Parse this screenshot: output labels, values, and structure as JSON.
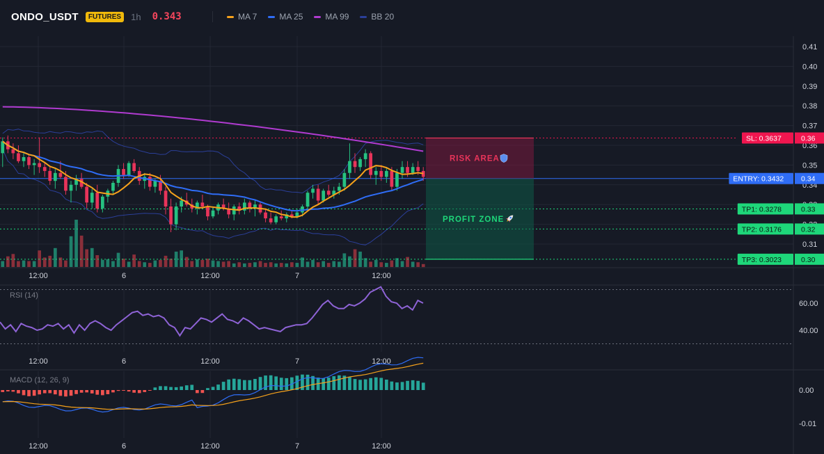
{
  "header": {
    "symbol": "ONDO_USDT",
    "badge": "FUTURES",
    "timeframe": "1h",
    "price": "0.343"
  },
  "legend": [
    {
      "label": "MA 7",
      "color": "#f7a21b"
    },
    {
      "label": "MA 25",
      "color": "#2f6df6"
    },
    {
      "label": "MA 99",
      "color": "#b03bd0"
    },
    {
      "label": "BB 20",
      "color": "#2b3f99"
    }
  ],
  "colors": {
    "up": "#26c281",
    "down": "#e8345a",
    "vol_up": "#1f7f6a",
    "vol_down": "#8a2f3a",
    "grid": "#232734",
    "axis_text": "#d1d4dc"
  },
  "price_axis": {
    "ticks": [
      "0.41",
      "0.40",
      "0.39",
      "0.38",
      "0.37",
      "0.36",
      "0.35",
      "0.34",
      "0.33",
      "0.32",
      "0.31"
    ],
    "min": 0.3,
    "max": 0.415
  },
  "time_axis": {
    "labels": [
      "12:00",
      "6",
      "12:00",
      "7",
      "12:00"
    ]
  },
  "levels": [
    {
      "label": "SL: 0.3637",
      "axis": "0.36",
      "value": 0.3637,
      "color": "#f0164f",
      "style": "dotted"
    },
    {
      "label": "ENTRY: 0.3432",
      "axis": "0.34",
      "value": 0.3432,
      "color": "#2f6df6",
      "style": "solid"
    },
    {
      "label": "TP1: 0.3278",
      "axis": "0.33",
      "value": 0.3278,
      "color": "#1ed77a",
      "style": "dotted"
    },
    {
      "label": "TP2: 0.3176",
      "axis": "0.32",
      "value": 0.3176,
      "color": "#1ed77a",
      "style": "dotted"
    },
    {
      "label": "TP3: 0.3023",
      "axis": "0.30",
      "value": 0.3023,
      "color": "#1ed77a",
      "style": "dotted"
    }
  ],
  "zones": {
    "risk": {
      "label": "RISK AREA",
      "icon": "shield-icon"
    },
    "profit": {
      "label": "PROFIT ZONE",
      "icon": "rocket-icon"
    }
  },
  "rsi": {
    "title": "RSI (14)",
    "ticks": [
      "60.00",
      "40.00"
    ],
    "color": "#8e63d6"
  },
  "macd": {
    "title": "MACD (12, 26, 9)",
    "ticks": [
      "0.00",
      "-0.01"
    ],
    "macd_color": "#2f6df6",
    "signal_color": "#f7a21b"
  },
  "chart_data": {
    "type": "candlestick",
    "candles": [
      [
        0.356,
        0.364,
        0.349,
        0.362
      ],
      [
        0.362,
        0.365,
        0.356,
        0.358
      ],
      [
        0.358,
        0.361,
        0.353,
        0.356
      ],
      [
        0.356,
        0.36,
        0.351,
        0.352
      ],
      [
        0.352,
        0.356,
        0.349,
        0.354
      ],
      [
        0.354,
        0.355,
        0.348,
        0.35
      ],
      [
        0.35,
        0.353,
        0.345,
        0.351
      ],
      [
        0.351,
        0.364,
        0.346,
        0.349
      ],
      [
        0.349,
        0.351,
        0.344,
        0.347
      ],
      [
        0.347,
        0.349,
        0.34,
        0.342
      ],
      [
        0.342,
        0.348,
        0.338,
        0.346
      ],
      [
        0.346,
        0.352,
        0.343,
        0.344
      ],
      [
        0.344,
        0.347,
        0.335,
        0.337
      ],
      [
        0.337,
        0.342,
        0.331,
        0.34
      ],
      [
        0.34,
        0.345,
        0.337,
        0.343
      ],
      [
        0.343,
        0.346,
        0.338,
        0.339
      ],
      [
        0.339,
        0.341,
        0.328,
        0.331
      ],
      [
        0.331,
        0.338,
        0.328,
        0.336
      ],
      [
        0.336,
        0.34,
        0.326,
        0.328
      ],
      [
        0.328,
        0.335,
        0.326,
        0.334
      ],
      [
        0.334,
        0.338,
        0.331,
        0.337
      ],
      [
        0.337,
        0.342,
        0.335,
        0.341
      ],
      [
        0.341,
        0.35,
        0.339,
        0.348
      ],
      [
        0.348,
        0.351,
        0.343,
        0.345
      ],
      [
        0.345,
        0.352,
        0.344,
        0.351
      ],
      [
        0.351,
        0.353,
        0.346,
        0.347
      ],
      [
        0.347,
        0.349,
        0.34,
        0.342
      ],
      [
        0.342,
        0.346,
        0.338,
        0.344
      ],
      [
        0.344,
        0.346,
        0.337,
        0.339
      ],
      [
        0.339,
        0.343,
        0.336,
        0.342
      ],
      [
        0.342,
        0.345,
        0.335,
        0.337
      ],
      [
        0.337,
        0.339,
        0.325,
        0.329
      ],
      [
        0.329,
        0.333,
        0.316,
        0.32
      ],
      [
        0.32,
        0.331,
        0.317,
        0.329
      ],
      [
        0.329,
        0.334,
        0.326,
        0.332
      ],
      [
        0.332,
        0.336,
        0.329,
        0.33
      ],
      [
        0.33,
        0.333,
        0.326,
        0.328
      ],
      [
        0.328,
        0.332,
        0.325,
        0.331
      ],
      [
        0.331,
        0.335,
        0.328,
        0.329
      ],
      [
        0.329,
        0.33,
        0.322,
        0.324
      ],
      [
        0.324,
        0.329,
        0.323,
        0.327
      ],
      [
        0.327,
        0.331,
        0.325,
        0.33
      ],
      [
        0.33,
        0.333,
        0.327,
        0.328
      ],
      [
        0.328,
        0.331,
        0.323,
        0.325
      ],
      [
        0.325,
        0.33,
        0.322,
        0.329
      ],
      [
        0.329,
        0.331,
        0.325,
        0.327
      ],
      [
        0.327,
        0.333,
        0.325,
        0.331
      ],
      [
        0.331,
        0.332,
        0.326,
        0.328
      ],
      [
        0.328,
        0.332,
        0.324,
        0.33
      ],
      [
        0.33,
        0.331,
        0.325,
        0.326
      ],
      [
        0.326,
        0.328,
        0.321,
        0.323
      ],
      [
        0.323,
        0.326,
        0.32,
        0.321
      ],
      [
        0.321,
        0.325,
        0.32,
        0.324
      ],
      [
        0.324,
        0.327,
        0.322,
        0.323
      ],
      [
        0.323,
        0.326,
        0.321,
        0.325
      ],
      [
        0.325,
        0.327,
        0.323,
        0.324
      ],
      [
        0.324,
        0.328,
        0.323,
        0.326
      ],
      [
        0.326,
        0.33,
        0.324,
        0.329
      ],
      [
        0.329,
        0.337,
        0.327,
        0.336
      ],
      [
        0.336,
        0.34,
        0.333,
        0.338
      ],
      [
        0.338,
        0.34,
        0.33,
        0.332
      ],
      [
        0.332,
        0.338,
        0.331,
        0.337
      ],
      [
        0.337,
        0.34,
        0.334,
        0.335
      ],
      [
        0.335,
        0.339,
        0.333,
        0.337
      ],
      [
        0.337,
        0.341,
        0.335,
        0.339
      ],
      [
        0.339,
        0.348,
        0.337,
        0.346
      ],
      [
        0.346,
        0.361,
        0.343,
        0.352
      ],
      [
        0.352,
        0.356,
        0.346,
        0.349
      ],
      [
        0.349,
        0.354,
        0.347,
        0.353
      ],
      [
        0.353,
        0.358,
        0.349,
        0.356
      ],
      [
        0.356,
        0.357,
        0.343,
        0.345
      ],
      [
        0.345,
        0.349,
        0.34,
        0.347
      ],
      [
        0.347,
        0.35,
        0.342,
        0.344
      ],
      [
        0.344,
        0.349,
        0.341,
        0.347
      ],
      [
        0.347,
        0.349,
        0.337,
        0.339
      ],
      [
        0.339,
        0.348,
        0.337,
        0.346
      ],
      [
        0.346,
        0.352,
        0.343,
        0.349
      ],
      [
        0.349,
        0.352,
        0.344,
        0.346
      ],
      [
        0.346,
        0.351,
        0.345,
        0.349
      ],
      [
        0.349,
        0.352,
        0.345,
        0.347
      ],
      [
        0.347,
        0.349,
        0.342,
        0.344
      ]
    ],
    "volume": [
      1.0,
      1.8,
      2.2,
      1.0,
      1.1,
      1.0,
      1.0,
      2.8,
      1.6,
      1.9,
      3.2,
      1.6,
      1.1,
      5.2,
      8.0,
      5.3,
      3.0,
      3.2,
      2.0,
      1.2,
      1.3,
      1.0,
      2.4,
      1.4,
      0.9,
      2.1,
      1.0,
      0.8,
      0.7,
      1.1,
      1.2,
      1.9,
      1.4,
      2.6,
      2.8,
      1.7,
      1.0,
      1.3,
      1.2,
      1.4,
      1.1,
      1.0,
      0.9,
      1.0,
      0.6,
      0.8,
      0.6,
      0.7,
      0.8,
      1.0,
      0.7,
      0.8,
      0.6,
      0.7,
      0.6,
      0.8,
      0.7,
      1.6,
      0.9,
      1.2,
      0.8,
      1.0,
      0.7,
      1.0,
      0.9,
      2.3,
      1.8,
      3.0,
      2.6,
      1.5,
      0.9,
      1.2,
      0.8,
      0.7,
      1.1,
      1.5,
      1.0,
      1.7,
      0.9,
      0.8,
      0.5
    ],
    "rsi_values": [
      46,
      41,
      44,
      39,
      45,
      43,
      42,
      40,
      41,
      44,
      43,
      45,
      41,
      44,
      38,
      44,
      40,
      45,
      47,
      45,
      42,
      40,
      44,
      47,
      50,
      53,
      54,
      51,
      52,
      50,
      51,
      49,
      44,
      42,
      36,
      42,
      41,
      45,
      49,
      48,
      46,
      49,
      52,
      48,
      47,
      45,
      49,
      47,
      44,
      41,
      42,
      41,
      40,
      39,
      42,
      43,
      44,
      44,
      45,
      49,
      54,
      59,
      62,
      58,
      56,
      56,
      59,
      58,
      60,
      63,
      68,
      70,
      72,
      65,
      61,
      60,
      56,
      58,
      55,
      62,
      60
    ]
  }
}
